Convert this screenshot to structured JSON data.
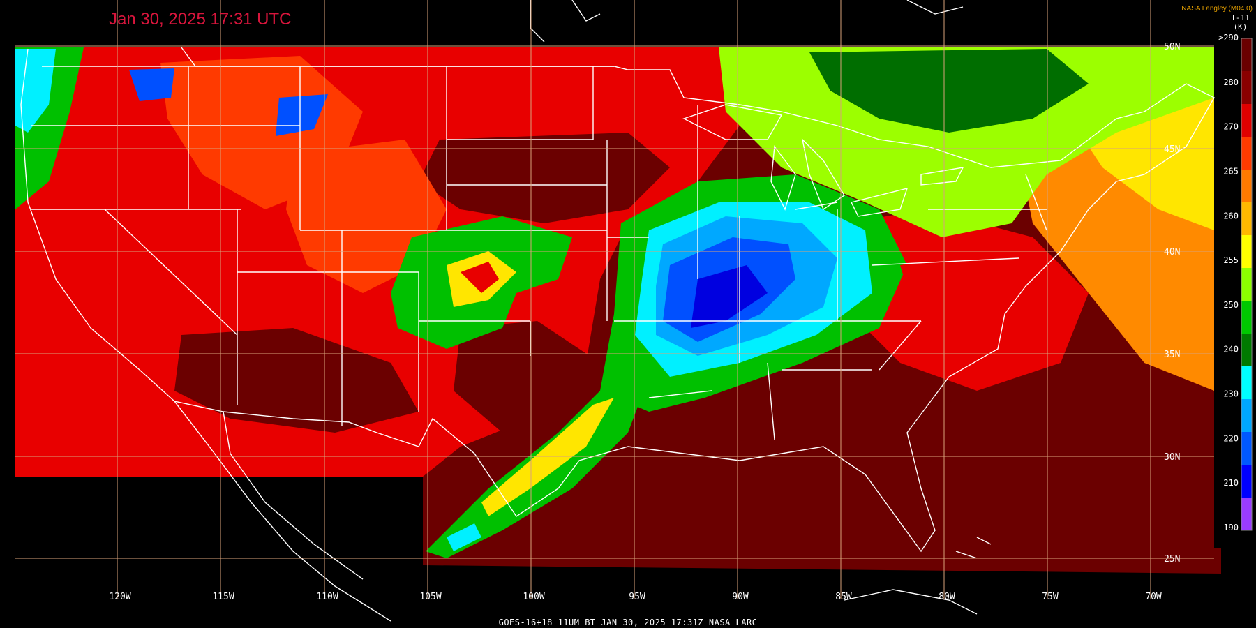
{
  "timestamp": "Jan 30, 2025 17:31 UTC",
  "credit": "NASA Langley (M04.0)",
  "colorbar": {
    "title": "T-11",
    "unit": "(K)",
    "tick_labels": [
      ">290",
      "280",
      "270",
      "265",
      "260",
      "255",
      "250",
      "240",
      "230",
      "220",
      "210",
      "190"
    ],
    "colors": [
      "#6a0000",
      "#8a0000",
      "#e00000",
      "#ff3b00",
      "#ff7a00",
      "#ffb800",
      "#ffff00",
      "#8cff00",
      "#00c800",
      "#007a00",
      "#00ffff",
      "#00a8ff",
      "#0058ff",
      "#0000ff",
      "#9a3cff"
    ]
  },
  "map": {
    "longitude_labels": [
      "120W",
      "115W",
      "110W",
      "105W",
      "100W",
      "95W",
      "90W",
      "85W",
      "80W",
      "75W",
      "70W"
    ],
    "latitude_labels": [
      "50N",
      "45N",
      "40N",
      "35N",
      "30N",
      "25N"
    ],
    "colors": {
      "dark_red": "#6b0000",
      "red": "#e80000",
      "orange_red": "#ff3a00",
      "orange": "#ff8a00",
      "yellow": "#ffe600",
      "light_green": "#9cff00",
      "green": "#00c000",
      "dark_green": "#006e00",
      "cyan": "#00f0ff",
      "light_blue": "#00a8ff",
      "blue": "#0050ff",
      "deep_blue": "#0000e0",
      "grid": "#d9a27a",
      "border": "#ffffff"
    }
  },
  "footer": "GOES-16+18  11UM BT   JAN 30, 2025 17:31Z   NASA LARC"
}
